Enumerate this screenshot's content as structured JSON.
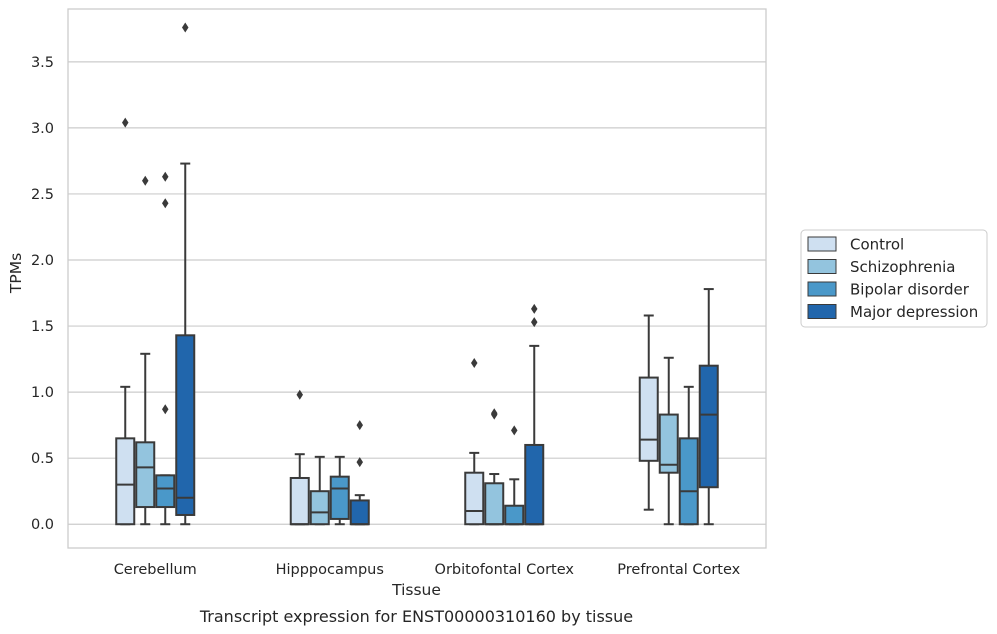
{
  "chart_data": {
    "type": "box",
    "title": "",
    "caption": "Transcript expression for ENST00000310160 by tissue",
    "xlabel": "Tissue",
    "ylabel": "TPMs",
    "ylim": [
      -0.18,
      3.9
    ],
    "yticks": [
      "0.0",
      "0.5",
      "1.0",
      "1.5",
      "2.0",
      "2.5",
      "3.0",
      "3.5"
    ],
    "grid": true,
    "legend_position": "right",
    "categories": [
      "Cerebellum",
      "Hipppocampus",
      "Orbitofontal Cortex",
      "Prefrontal Cortex"
    ],
    "series": [
      {
        "name": "Control",
        "color": "#cfe0f1",
        "boxes": [
          {
            "q1": 0.0,
            "median": 0.3,
            "q3": 0.65,
            "whisker_low": 0.0,
            "whisker_high": 1.04,
            "outliers": [
              3.04
            ]
          },
          {
            "q1": 0.0,
            "median": 0.0,
            "q3": 0.35,
            "whisker_low": 0.0,
            "whisker_high": 0.53,
            "outliers": [
              0.98
            ]
          },
          {
            "q1": 0.0,
            "median": 0.1,
            "q3": 0.39,
            "whisker_low": 0.0,
            "whisker_high": 0.54,
            "outliers": [
              1.22
            ]
          },
          {
            "q1": 0.48,
            "median": 0.64,
            "q3": 1.11,
            "whisker_low": 0.11,
            "whisker_high": 1.58,
            "outliers": []
          }
        ]
      },
      {
        "name": "Schizophrenia",
        "color": "#93c4de",
        "boxes": [
          {
            "q1": 0.13,
            "median": 0.43,
            "q3": 0.62,
            "whisker_low": 0.0,
            "whisker_high": 1.29,
            "outliers": [
              2.6
            ]
          },
          {
            "q1": 0.0,
            "median": 0.09,
            "q3": 0.25,
            "whisker_low": 0.0,
            "whisker_high": 0.51,
            "outliers": []
          },
          {
            "q1": 0.0,
            "median": 0.0,
            "q3": 0.31,
            "whisker_low": 0.0,
            "whisker_high": 0.38,
            "outliers": [
              0.83,
              0.84
            ]
          },
          {
            "q1": 0.39,
            "median": 0.45,
            "q3": 0.83,
            "whisker_low": 0.0,
            "whisker_high": 1.26,
            "outliers": []
          }
        ]
      },
      {
        "name": "Bipolar disorder",
        "color": "#4a98c9",
        "boxes": [
          {
            "q1": 0.13,
            "median": 0.27,
            "q3": 0.37,
            "whisker_low": 0.0,
            "whisker_high": 0.37,
            "outliers": [
              0.87,
              2.43,
              2.63
            ]
          },
          {
            "q1": 0.04,
            "median": 0.27,
            "q3": 0.36,
            "whisker_low": 0.0,
            "whisker_high": 0.51,
            "outliers": []
          },
          {
            "q1": 0.0,
            "median": 0.0,
            "q3": 0.14,
            "whisker_low": 0.0,
            "whisker_high": 0.34,
            "outliers": [
              0.71
            ]
          },
          {
            "q1": 0.0,
            "median": 0.25,
            "q3": 0.65,
            "whisker_low": 0.0,
            "whisker_high": 1.04,
            "outliers": []
          }
        ]
      },
      {
        "name": "Major depression",
        "color": "#2166ac",
        "boxes": [
          {
            "q1": 0.07,
            "median": 0.2,
            "q3": 1.43,
            "whisker_low": 0.0,
            "whisker_high": 2.73,
            "outliers": [
              3.76
            ]
          },
          {
            "q1": 0.0,
            "median": 0.0,
            "q3": 0.18,
            "whisker_low": 0.0,
            "whisker_high": 0.22,
            "outliers": [
              0.47,
              0.75
            ]
          },
          {
            "q1": 0.0,
            "median": 0.0,
            "q3": 0.6,
            "whisker_low": 0.0,
            "whisker_high": 1.35,
            "outliers": [
              1.53,
              1.63
            ]
          },
          {
            "q1": 0.28,
            "median": 0.83,
            "q3": 1.2,
            "whisker_low": 0.0,
            "whisker_high": 1.78,
            "outliers": []
          }
        ]
      }
    ]
  }
}
